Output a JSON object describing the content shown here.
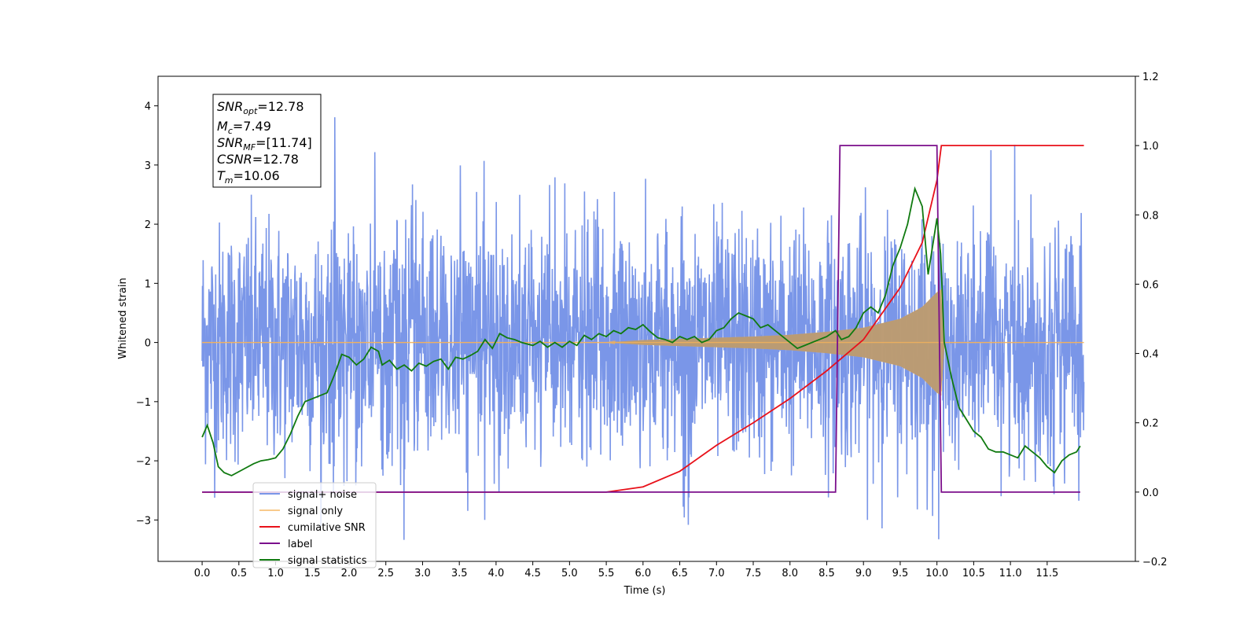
{
  "chart_data": {
    "type": "line",
    "xlabel": "Time (s)",
    "ylabel_left": "Whitened strain",
    "ylabel_right": "",
    "xlim": [
      -0.6,
      12.7
    ],
    "ylim_left": [
      -3.7,
      4.5
    ],
    "ylim_right": [
      -0.2,
      1.2
    ],
    "x_ticks": [
      "0.0",
      "0.5",
      "1.0",
      "1.5",
      "2.0",
      "2.5",
      "3.0",
      "3.5",
      "4.0",
      "4.5",
      "5.0",
      "5.5",
      "6.0",
      "6.5",
      "7.0",
      "7.5",
      "8.0",
      "8.5",
      "9.0",
      "9.5",
      "10.0",
      "10.5",
      "11.0",
      "11.5"
    ],
    "y_ticks_left": [
      "−3",
      "−2",
      "−1",
      "0",
      "1",
      "2",
      "3",
      "4"
    ],
    "y_ticks_right": [
      "−0.2",
      "0.0",
      "0.2",
      "0.4",
      "0.6",
      "0.8",
      "1.0",
      "1.2"
    ],
    "grid": false,
    "legend_position": "lower-left",
    "annotation": {
      "snr_opt": {
        "base": "SNR",
        "sub": "opt",
        "value": "=12.78"
      },
      "mc": {
        "base": "M",
        "sub": "c",
        "value": "=7.49"
      },
      "snr_mf": {
        "base": "SNR",
        "sub": "MF",
        "value": "=[11.74]"
      },
      "csnr": {
        "base": "CSNR",
        "value": "=12.78"
      },
      "tm": {
        "base": "T",
        "sub": "m",
        "value": "=10.06"
      }
    },
    "series": [
      {
        "name": "signal+ noise",
        "axis": "left",
        "color": "#7a96e8",
        "kind": "noise",
        "x_range": [
          0.0,
          12.0
        ],
        "std": 1.0,
        "min": -3.35,
        "max": 4.1
      },
      {
        "name": "signal only",
        "axis": "left",
        "color": "#f5b35a",
        "kind": "chirp",
        "x_range": [
          0.0,
          12.0
        ],
        "envelope": [
          [
            0.0,
            0.0
          ],
          [
            5.5,
            0.0
          ],
          [
            6.0,
            0.04
          ],
          [
            6.5,
            0.06
          ],
          [
            7.0,
            0.08
          ],
          [
            7.5,
            0.1
          ],
          [
            8.0,
            0.13
          ],
          [
            8.5,
            0.18
          ],
          [
            9.0,
            0.25
          ],
          [
            9.5,
            0.4
          ],
          [
            9.8,
            0.6
          ],
          [
            10.0,
            0.85
          ],
          [
            10.06,
            0.9
          ],
          [
            10.1,
            0.0
          ],
          [
            12.0,
            0.0
          ]
        ]
      },
      {
        "name": "cumilative SNR",
        "axis": "right",
        "color": "#e8111a",
        "points": [
          [
            0.0,
            0.0
          ],
          [
            5.5,
            0.0
          ],
          [
            6.0,
            0.015
          ],
          [
            6.5,
            0.06
          ],
          [
            7.0,
            0.135
          ],
          [
            7.5,
            0.2
          ],
          [
            8.0,
            0.27
          ],
          [
            8.5,
            0.35
          ],
          [
            9.0,
            0.44
          ],
          [
            9.5,
            0.59
          ],
          [
            9.8,
            0.72
          ],
          [
            10.0,
            0.9
          ],
          [
            10.06,
            1.0
          ],
          [
            12.0,
            1.0
          ]
        ]
      },
      {
        "name": "label",
        "axis": "right",
        "color": "#7b0f8c",
        "points": [
          [
            0.0,
            0.0
          ],
          [
            8.62,
            0.0
          ],
          [
            8.68,
            1.0
          ],
          [
            10.0,
            1.0
          ],
          [
            10.06,
            0.0
          ],
          [
            11.95,
            0.0
          ]
        ]
      },
      {
        "name": "signal statistics",
        "axis": "left",
        "color": "#107a10",
        "points": [
          [
            0.0,
            -1.6
          ],
          [
            0.07,
            -1.4
          ],
          [
            0.15,
            -1.7
          ],
          [
            0.22,
            -2.1
          ],
          [
            0.3,
            -2.2
          ],
          [
            0.4,
            -2.25
          ],
          [
            0.55,
            -2.15
          ],
          [
            0.7,
            -2.05
          ],
          [
            0.8,
            -2.0
          ],
          [
            0.9,
            -1.98
          ],
          [
            1.0,
            -1.95
          ],
          [
            1.1,
            -1.8
          ],
          [
            1.2,
            -1.55
          ],
          [
            1.3,
            -1.25
          ],
          [
            1.4,
            -1.0
          ],
          [
            1.5,
            -0.95
          ],
          [
            1.6,
            -0.9
          ],
          [
            1.7,
            -0.85
          ],
          [
            1.8,
            -0.55
          ],
          [
            1.9,
            -0.2
          ],
          [
            2.0,
            -0.25
          ],
          [
            2.1,
            -0.38
          ],
          [
            2.2,
            -0.28
          ],
          [
            2.3,
            -0.08
          ],
          [
            2.4,
            -0.15
          ],
          [
            2.45,
            -0.38
          ],
          [
            2.55,
            -0.3
          ],
          [
            2.65,
            -0.45
          ],
          [
            2.75,
            -0.38
          ],
          [
            2.85,
            -0.48
          ],
          [
            2.95,
            -0.35
          ],
          [
            3.05,
            -0.4
          ],
          [
            3.15,
            -0.32
          ],
          [
            3.25,
            -0.28
          ],
          [
            3.35,
            -0.45
          ],
          [
            3.45,
            -0.25
          ],
          [
            3.55,
            -0.28
          ],
          [
            3.65,
            -0.22
          ],
          [
            3.75,
            -0.15
          ],
          [
            3.85,
            0.05
          ],
          [
            3.95,
            -0.1
          ],
          [
            4.05,
            0.15
          ],
          [
            4.15,
            0.08
          ],
          [
            4.25,
            0.05
          ],
          [
            4.35,
            0.0
          ],
          [
            4.5,
            -0.05
          ],
          [
            4.6,
            0.02
          ],
          [
            4.7,
            -0.08
          ],
          [
            4.8,
            0.0
          ],
          [
            4.9,
            -0.08
          ],
          [
            5.0,
            0.02
          ],
          [
            5.1,
            -0.05
          ],
          [
            5.2,
            0.12
          ],
          [
            5.3,
            0.05
          ],
          [
            5.4,
            0.15
          ],
          [
            5.5,
            0.1
          ],
          [
            5.6,
            0.2
          ],
          [
            5.7,
            0.15
          ],
          [
            5.8,
            0.25
          ],
          [
            5.9,
            0.22
          ],
          [
            6.0,
            0.3
          ],
          [
            6.1,
            0.18
          ],
          [
            6.2,
            0.08
          ],
          [
            6.3,
            0.05
          ],
          [
            6.4,
            0.0
          ],
          [
            6.5,
            0.1
          ],
          [
            6.6,
            0.05
          ],
          [
            6.7,
            0.1
          ],
          [
            6.8,
            0.0
          ],
          [
            6.9,
            0.05
          ],
          [
            7.0,
            0.2
          ],
          [
            7.1,
            0.25
          ],
          [
            7.2,
            0.4
          ],
          [
            7.3,
            0.5
          ],
          [
            7.4,
            0.45
          ],
          [
            7.5,
            0.4
          ],
          [
            7.6,
            0.25
          ],
          [
            7.7,
            0.3
          ],
          [
            7.8,
            0.2
          ],
          [
            7.9,
            0.1
          ],
          [
            8.0,
            0.0
          ],
          [
            8.1,
            -0.1
          ],
          [
            8.2,
            -0.05
          ],
          [
            8.3,
            0.0
          ],
          [
            8.5,
            0.1
          ],
          [
            8.62,
            0.2
          ],
          [
            8.7,
            0.05
          ],
          [
            8.8,
            0.1
          ],
          [
            8.9,
            0.25
          ],
          [
            9.0,
            0.5
          ],
          [
            9.1,
            0.6
          ],
          [
            9.2,
            0.5
          ],
          [
            9.3,
            0.8
          ],
          [
            9.4,
            1.3
          ],
          [
            9.5,
            1.6
          ],
          [
            9.6,
            2.0
          ],
          [
            9.7,
            2.6
          ],
          [
            9.8,
            2.3
          ],
          [
            9.88,
            1.15
          ],
          [
            9.95,
            1.7
          ],
          [
            10.0,
            2.1
          ],
          [
            10.05,
            1.5
          ],
          [
            10.1,
            0.0
          ],
          [
            10.2,
            -0.6
          ],
          [
            10.3,
            -1.1
          ],
          [
            10.4,
            -1.3
          ],
          [
            10.5,
            -1.5
          ],
          [
            10.6,
            -1.6
          ],
          [
            10.7,
            -1.8
          ],
          [
            10.8,
            -1.85
          ],
          [
            10.9,
            -1.85
          ],
          [
            11.0,
            -1.9
          ],
          [
            11.1,
            -1.95
          ],
          [
            11.2,
            -1.75
          ],
          [
            11.3,
            -1.85
          ],
          [
            11.4,
            -1.95
          ],
          [
            11.5,
            -2.1
          ],
          [
            11.6,
            -2.2
          ],
          [
            11.7,
            -2.0
          ],
          [
            11.8,
            -1.9
          ],
          [
            11.9,
            -1.85
          ],
          [
            11.95,
            -1.75
          ]
        ]
      }
    ]
  }
}
